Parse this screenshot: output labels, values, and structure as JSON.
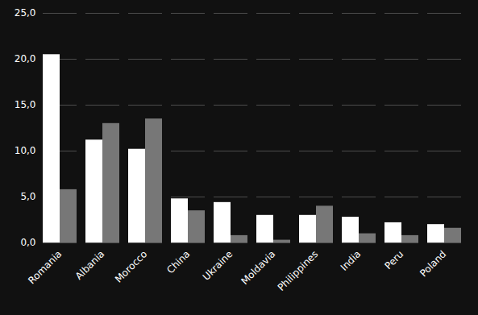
{
  "chart_data": {
    "type": "bar",
    "categories": [
      "Romania",
      "Albania",
      "Morocco",
      "China",
      "Ukraine",
      "Moldavia",
      "Philippines",
      "India",
      "Peru",
      "Poland"
    ],
    "series": [
      {
        "color": "#ffffff",
        "values": [
          20.5,
          11.2,
          10.2,
          4.8,
          4.4,
          3.0,
          3.0,
          2.8,
          2.2,
          2.0
        ]
      },
      {
        "color": "#777777",
        "values": [
          5.8,
          13.0,
          13.5,
          3.5,
          0.8,
          0.3,
          4.0,
          1.0,
          0.8,
          1.6
        ]
      }
    ],
    "ylim": [
      0,
      25
    ],
    "yticks": [
      {
        "value": 0.0,
        "label": "0,0"
      },
      {
        "value": 5.0,
        "label": "5,0"
      },
      {
        "value": 10.0,
        "label": "10,0"
      },
      {
        "value": 15.0,
        "label": "15,0"
      },
      {
        "value": 20.0,
        "label": "20,0"
      },
      {
        "value": 25.0,
        "label": "25,0"
      }
    ],
    "grid": true
  }
}
